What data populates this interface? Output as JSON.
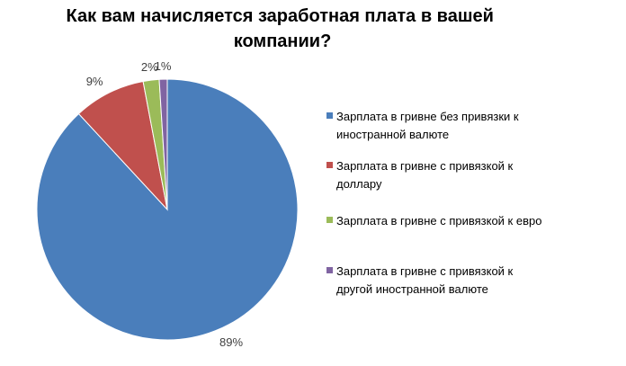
{
  "chart_data": {
    "type": "pie",
    "title_lines": [
      "Как вам начисляется заработная плата в вашей",
      "компании?"
    ],
    "slices": [
      {
        "label_lines": [
          "Зарплата в гривне без привязки к",
          "иностранной валюте"
        ],
        "value": 89,
        "value_label": "89%",
        "color": "#4a7ebb"
      },
      {
        "label_lines": [
          "Зарплата в гривне с привязкой к",
          "доллару"
        ],
        "value": 9,
        "value_label": "9%",
        "color": "#c0504d"
      },
      {
        "label_lines": [
          "Зарплата в гривне с привязкой к евро"
        ],
        "value": 2,
        "value_label": "2%",
        "color": "#9bbb59"
      },
      {
        "label_lines": [
          "Зарплата в гривне с привязкой к",
          "другой иностранной валюте"
        ],
        "value": 1,
        "value_label": "1%",
        "color": "#8064a2"
      }
    ],
    "legend_position": "right",
    "start_angle": "12 o'clock",
    "direction": "clockwise"
  }
}
